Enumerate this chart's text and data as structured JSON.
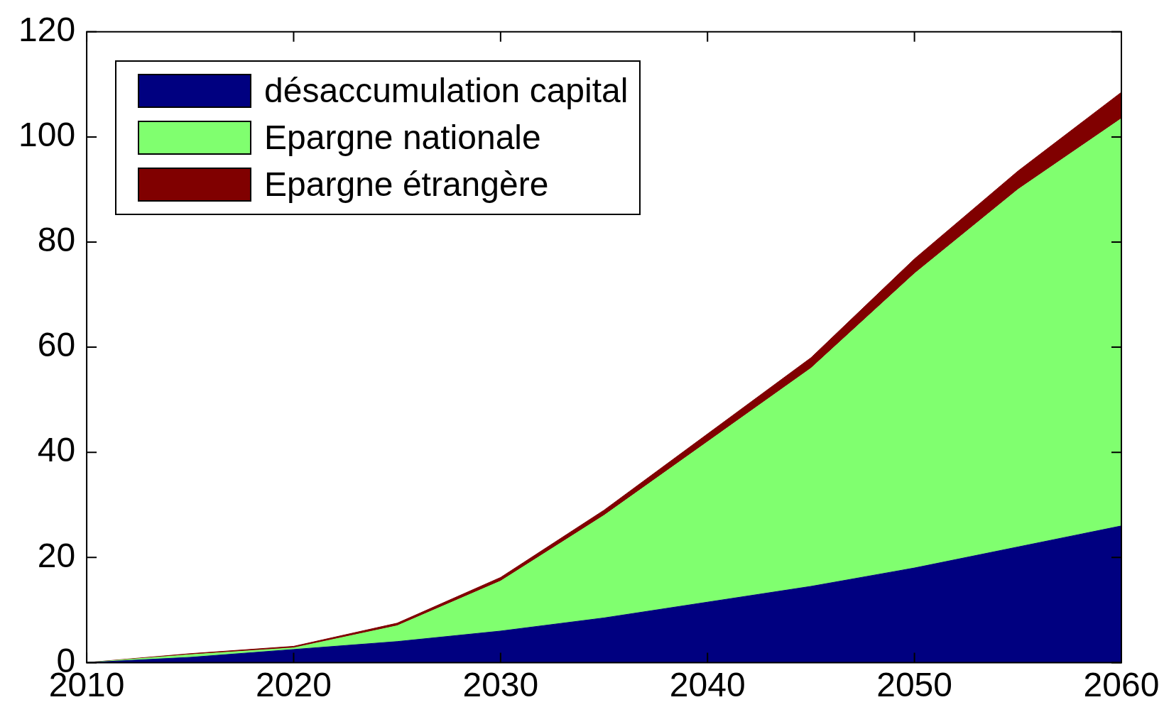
{
  "chart_data": {
    "type": "area",
    "stacked": true,
    "x": [
      2010,
      2015,
      2020,
      2025,
      2030,
      2035,
      2040,
      2045,
      2050,
      2055,
      2060
    ],
    "series": [
      {
        "name": "désaccumulation capital",
        "color": "#000080",
        "values": [
          0,
          1,
          2.5,
          4,
          6,
          8.5,
          11.5,
          14.5,
          18,
          22,
          26
        ]
      },
      {
        "name": "Epargne nationale",
        "color": "#80ff6f",
        "values": [
          0,
          0.5,
          0.3,
          3,
          9.5,
          19.5,
          30.5,
          41.5,
          56,
          68,
          77.5
        ]
      },
      {
        "name": "Epargne étrangère",
        "color": "#800000",
        "values": [
          0,
          0.2,
          0.3,
          0.5,
          0.7,
          1,
          1.5,
          2,
          2.8,
          3.5,
          5
        ]
      }
    ],
    "xlim": [
      2010,
      2060
    ],
    "xticks": [
      2010,
      2020,
      2030,
      2040,
      2050,
      2060
    ],
    "ylim": [
      0,
      120
    ],
    "yticks": [
      0,
      20,
      40,
      60,
      80,
      100,
      120
    ],
    "grid": false,
    "legend": "top left"
  }
}
